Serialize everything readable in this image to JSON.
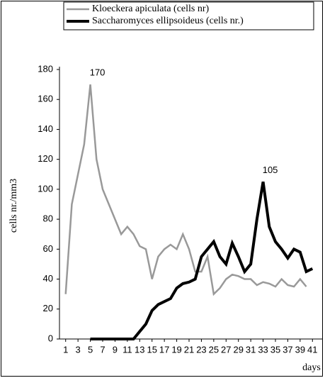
{
  "chart_data": {
    "type": "line",
    "legend": "top",
    "x": [
      1,
      2,
      3,
      4,
      5,
      6,
      7,
      8,
      9,
      10,
      11,
      12,
      13,
      14,
      15,
      16,
      17,
      18,
      19,
      20,
      21,
      22,
      23,
      24,
      25,
      26,
      27,
      28,
      29,
      30,
      31,
      32,
      33,
      34,
      35,
      36,
      37,
      38,
      39,
      40,
      41
    ],
    "series": [
      {
        "name": "Kloeckera apiculata (cells nr)",
        "color": "#999999",
        "width": 2.5,
        "values": [
          30,
          90,
          110,
          130,
          170,
          120,
          100,
          90,
          80,
          70,
          75,
          70,
          62,
          60,
          40,
          55,
          60,
          63,
          60,
          70,
          60,
          45,
          45,
          55,
          30,
          34,
          40,
          43,
          42,
          40,
          40,
          36,
          38,
          37,
          35,
          40,
          36,
          35,
          40,
          35,
          null
        ]
      },
      {
        "name": "Saccharomyces ellipsoideus (cells nr.)",
        "color": "#000000",
        "width": 4,
        "values": [
          null,
          null,
          null,
          null,
          0,
          0,
          0,
          0,
          0,
          0,
          0,
          0,
          5,
          10,
          19,
          23,
          25,
          27,
          34,
          37,
          38,
          40,
          55,
          60,
          65,
          55,
          50,
          64,
          55,
          45,
          50,
          80,
          105,
          75,
          65,
          60,
          54,
          60,
          58,
          45,
          47
        ]
      }
    ],
    "annotations": [
      {
        "text": "170",
        "x": 5,
        "y": 170
      },
      {
        "text": "105",
        "x": 33,
        "y": 105
      }
    ],
    "y_label": "cells nr./mm3",
    "x_label": "days",
    "xlim": [
      0,
      42
    ],
    "xticks": [
      1,
      3,
      5,
      7,
      9,
      11,
      13,
      15,
      17,
      19,
      21,
      23,
      25,
      27,
      29,
      31,
      33,
      35,
      37,
      39,
      41
    ],
    "ylim": [
      0,
      180
    ],
    "yticks": [
      0,
      20,
      40,
      60,
      80,
      100,
      120,
      140,
      160,
      180
    ]
  }
}
